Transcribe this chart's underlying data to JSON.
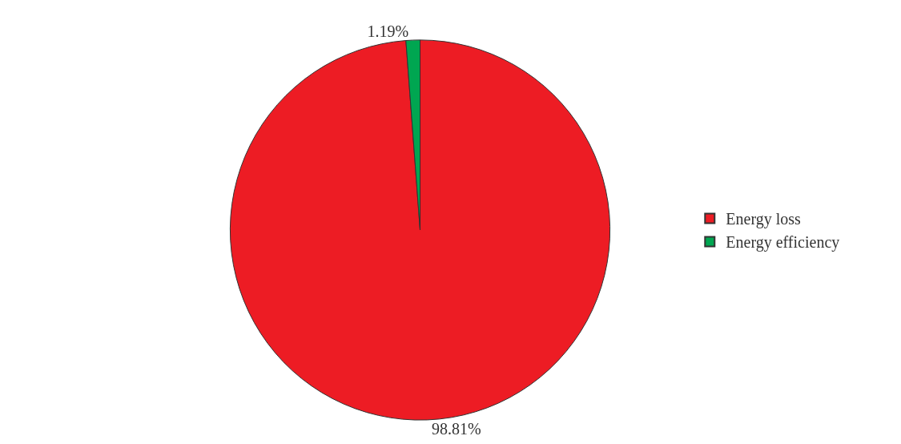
{
  "chart_data": {
    "type": "pie",
    "categories": [
      "Energy loss",
      "Energy efficiency"
    ],
    "values": [
      98.81,
      1.19
    ],
    "colors": [
      "#ed1c24",
      "#00a651"
    ],
    "value_labels": [
      "98.81%",
      "1.19%"
    ],
    "legend": "right"
  }
}
